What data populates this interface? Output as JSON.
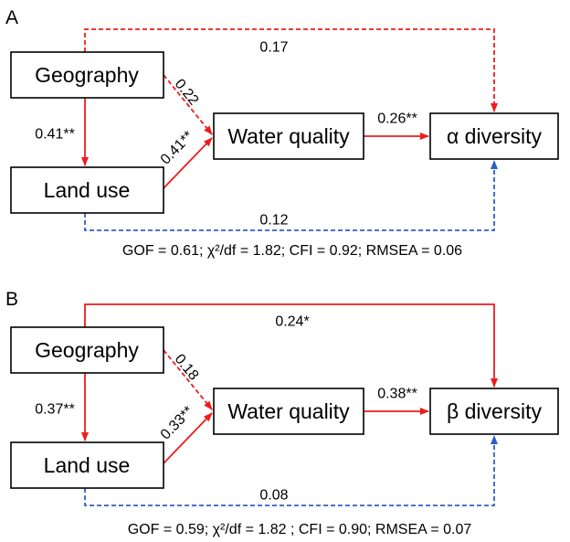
{
  "colors": {
    "positive": "#ee1c1c",
    "negative": "#2e5fc8"
  },
  "panels": [
    {
      "label": "A",
      "nodes": {
        "geography": "Geography",
        "land_use": "Land use",
        "water_quality": "Water quality",
        "diversity": "α diversity"
      },
      "paths": {
        "geo_div": "0.17",
        "geo_land": "0.41**",
        "geo_wq": "0.22",
        "land_wq": "0.41**",
        "wq_div": "0.26**",
        "land_div": "0.12"
      },
      "fit": "GOF = 0.61;  χ²/df = 1.82;  CFI = 0.92;  RMSEA = 0.06"
    },
    {
      "label": "B",
      "nodes": {
        "geography": "Geography",
        "land_use": "Land use",
        "water_quality": "Water quality",
        "diversity": "β diversity"
      },
      "paths": {
        "geo_div": "0.24*",
        "geo_land": "0.37**",
        "geo_wq": "0.18",
        "land_wq": "0.33**",
        "wq_div": "0.38**",
        "land_div": "0.08"
      },
      "fit": "GOF = 0.59;  χ²/df = 1.82 ;  CFI = 0.90;  RMSEA = 0.07"
    }
  ]
}
